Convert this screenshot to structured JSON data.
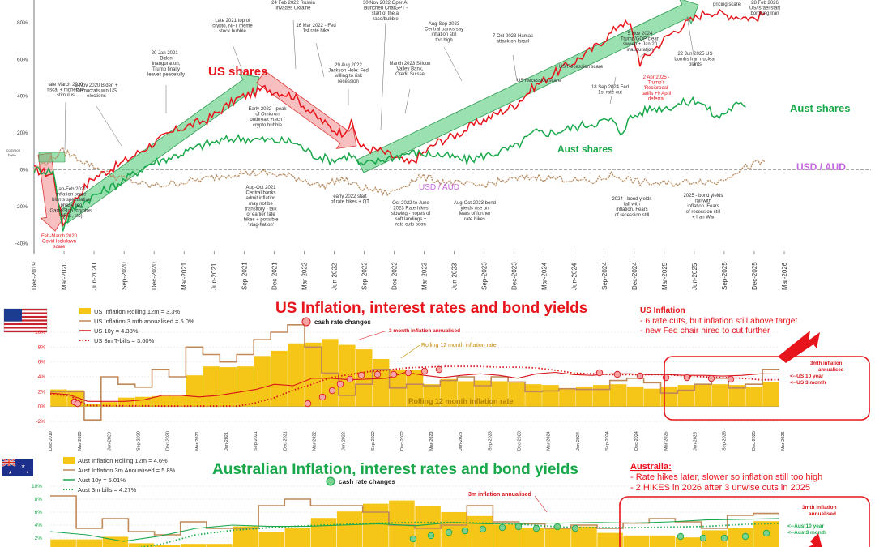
{
  "chart_data": [
    {
      "type": "line",
      "xlabels": [
        "Dec-2019",
        "Mar-2020",
        "Jun-2020",
        "Sep-2020",
        "Dec-2020",
        "Mar-2021",
        "Jun-2021",
        "Sep-2021",
        "Dec-2021",
        "Mar-2022",
        "Jun-2022",
        "Sep-2022",
        "Dec-2022",
        "Mar-2023",
        "Jun-2023",
        "Sep-2023",
        "Dec-2023",
        "Mar-2024",
        "Jun-2024",
        "Sep-2024",
        "Dec-2024",
        "Mar-2025",
        "Jun-2025",
        "Sep-2025",
        "Dec-2025",
        "Mar-2026"
      ],
      "yticks": [
        "80%",
        "60%",
        "40%",
        "20%",
        "0%",
        "-20%",
        "-40%"
      ],
      "ylim": [
        -40,
        85
      ],
      "common_base": "common base",
      "series": [
        {
          "name": "US shares",
          "color": "#e8141b",
          "points": [
            [
              0,
              0
            ],
            [
              2,
              -3
            ],
            [
              3,
              -30
            ],
            [
              4,
              -18
            ],
            [
              6,
              -5
            ],
            [
              9,
              3
            ],
            [
              12,
              13
            ],
            [
              15,
              22
            ],
            [
              18,
              27
            ],
            [
              21,
              38
            ],
            [
              24,
              44
            ],
            [
              27,
              40
            ],
            [
              29,
              30
            ],
            [
              31,
              22
            ],
            [
              32,
              20
            ],
            [
              33,
              25
            ],
            [
              34,
              12
            ],
            [
              36,
              10
            ],
            [
              39,
              3
            ],
            [
              40,
              7
            ],
            [
              42,
              15
            ],
            [
              44,
              19
            ],
            [
              46,
              25
            ],
            [
              48,
              30
            ],
            [
              50,
              35
            ],
            [
              52,
              45
            ],
            [
              54,
              52
            ],
            [
              56,
              58
            ],
            [
              58,
              65
            ],
            [
              60,
              74
            ],
            [
              61,
              80
            ],
            [
              62,
              78
            ],
            [
              63,
              58
            ],
            [
              64,
              63
            ],
            [
              66,
              73
            ],
            [
              68,
              80
            ],
            [
              70,
              86
            ],
            [
              72,
              84
            ],
            [
              75,
              82
            ],
            [
              76,
              85
            ]
          ]
        },
        {
          "name": "Aust shares",
          "color": "#18a84a",
          "points": [
            [
              0,
              0
            ],
            [
              2,
              -1
            ],
            [
              3,
              -32
            ],
            [
              4,
              -22
            ],
            [
              6,
              -15
            ],
            [
              9,
              -7
            ],
            [
              12,
              3
            ],
            [
              15,
              8
            ],
            [
              18,
              14
            ],
            [
              21,
              17
            ],
            [
              24,
              16
            ],
            [
              27,
              15
            ],
            [
              29,
              8
            ],
            [
              31,
              5
            ],
            [
              33,
              8
            ],
            [
              34,
              2
            ],
            [
              36,
              5
            ],
            [
              39,
              9
            ],
            [
              42,
              8
            ],
            [
              45,
              5
            ],
            [
              48,
              9
            ],
            [
              50,
              12
            ],
            [
              52,
              20
            ],
            [
              54,
              20
            ],
            [
              57,
              24
            ],
            [
              60,
              27
            ],
            [
              61,
              20
            ],
            [
              62,
              28
            ],
            [
              64,
              33
            ],
            [
              66,
              34
            ],
            [
              69,
              38
            ],
            [
              71,
              28
            ],
            [
              73,
              35
            ],
            [
              74,
              34
            ]
          ]
        },
        {
          "name": "USD / AUD",
          "color": "#b88f65",
          "points": [
            [
              0,
              0
            ],
            [
              3,
              10
            ],
            [
              5,
              5
            ],
            [
              8,
              -3
            ],
            [
              12,
              -9
            ],
            [
              14,
              -8
            ],
            [
              18,
              -5
            ],
            [
              21,
              -2
            ],
            [
              24,
              -2
            ],
            [
              27,
              -4
            ],
            [
              30,
              -9
            ],
            [
              32,
              -5
            ],
            [
              34,
              -10
            ],
            [
              37,
              -13
            ],
            [
              40,
              -4
            ],
            [
              43,
              -7
            ],
            [
              46,
              -9
            ],
            [
              49,
              -6
            ],
            [
              52,
              -4
            ],
            [
              55,
              -5
            ],
            [
              58,
              -7
            ],
            [
              60,
              -3
            ],
            [
              63,
              -7
            ],
            [
              66,
              -8
            ],
            [
              69,
              -6
            ],
            [
              71,
              -7
            ],
            [
              73,
              -1
            ],
            [
              75,
              3
            ],
            [
              76,
              4
            ]
          ]
        }
      ],
      "labels": {
        "us_shares": "US shares",
        "aust_shares": "Aust shares",
        "usd_aud": "USD / AUD"
      },
      "annotations": [
        "late March 2020 fiscal + monetary stimulus",
        "3 Nov 2020 Biden + Democrats win US elections",
        "20 Jan 2021 - Biden inauguration, Trump finally leaves peacefully",
        "Late 2021 top of crypto, NFT meme stock bubble",
        "24 Feb 2022 Russia invades Ukraine",
        "16 Mar 2022 - Fed 1st rate hike",
        "29 Aug 2022 Jackson Hole: Fed willing to risk recession",
        "30 Nov 2022 OpenAI launched ChatGPT - start of the ai race/bubble",
        "Aug-Sep 2023 Central banks say inflation still too high",
        "March 2023 Silicon Valley Bank, Credit Suisse",
        "7 Oct 2023 Hamas attack on Israel",
        "US Recession scare",
        "US Recession scare",
        "18 Sep 2024 Fed 1st rate cut",
        "5 Nov 2024 Trump/GOP clean sweep + Jan 20 inauguration",
        "2 Apr 2025 - Trump's 'Reciprocal' tariffs +9 April deferral",
        "22 Jun 2025 US bombs Iran nuclear plants",
        "pricing scare",
        "28 Feb 2026 US/Israel start bombing Iran",
        "Early 2022 - peak of Omicron outbreak +tech / crypto bubble",
        "Jan-Feb 2021 inflation scare blunts speculative phase (eg GameStop, cryptos, NFTs, etc)",
        "Aug-Oct 2021 Central banks admit inflation may not be transitory - talk of earlier rate hikes + possible 'stag-flation'",
        "early 2022 start of rate hikes + QT",
        "Oct 2022 to June 2023 Rate hikes slowing - hopes of soft landings + rate cuts soon",
        "Aug-Oct 2023 bond yields rise on fears of further rate hikes",
        "2024 - bond yields fall with inflation. Fears of recession still",
        "2025 - bond yields fall with inflation. Fears of recession still + Iran War",
        "Feb-March 2020 Covid lockdown scare"
      ]
    },
    {
      "type": "bar",
      "title": "US Inflation, interest rates and bond yields",
      "xlabels": [
        "Dec-2019",
        "Mar-2020",
        "Jun-2020",
        "Sep-2020",
        "Dec-2020",
        "Mar-2021",
        "Jun-2021",
        "Sep-2021",
        "Dec-2021",
        "Mar-2022",
        "Jun-2022",
        "Sep-2022",
        "Dec-2022",
        "Mar-2023",
        "Jun-2023",
        "Sep-2023",
        "Dec-2023",
        "Mar-2024",
        "Jun-2024",
        "Sep-2024",
        "Dec-2024",
        "Mar-2025",
        "Jun-2025",
        "Sep-2025",
        "Dec-2025",
        "Mar-2026"
      ],
      "yticks": [
        "10%",
        "8%",
        "6%",
        "4%",
        "2%",
        "0%",
        "-2%"
      ],
      "ylim": [
        -2,
        10
      ],
      "legend": [
        {
          "label": "US Inflation Rolling 12m  =  3.3%",
          "color": "#f5c518",
          "kind": "bar"
        },
        {
          "label": "US Inflation 3 mth annualised  = 5.0%",
          "color": "#c0895a",
          "kind": "line"
        },
        {
          "label": "US 10y  =  4.38%",
          "color": "#d7141a",
          "kind": "line"
        },
        {
          "label": "US 3m T-bills  =  3.60%",
          "color": "#d7141a",
          "kind": "dots"
        }
      ],
      "rolling_12m": [
        2.3,
        2.2,
        0.3,
        0.6,
        1.2,
        1.3,
        1.4,
        1.4,
        4.2,
        5.4,
        5.3,
        5.4,
        6.8,
        7.5,
        8.5,
        8.6,
        9.1,
        8.3,
        7.7,
        6.4,
        5.0,
        4.9,
        3.0,
        3.7,
        3.4,
        3.5,
        3.4,
        3.2,
        3.0,
        2.9,
        2.4,
        2.7,
        2.9,
        3.0,
        2.7,
        2.4,
        2.7,
        2.9,
        3.0,
        3.0,
        2.9,
        2.7,
        3.3
      ],
      "three_month_ann": [
        2.0,
        2.0,
        -1.8,
        4.0,
        3.0,
        2.6,
        5.0,
        4.0,
        8.0,
        7.0,
        6.0,
        7.0,
        9.0,
        10.0,
        11.0,
        8.0,
        4.5,
        1.5,
        3.0,
        5.0,
        2.5,
        3.0,
        2.8,
        3.5,
        4.0,
        2.8,
        4.0,
        3.3,
        2.0,
        2.1,
        2.4,
        2.3,
        2.3,
        3.5,
        3.8,
        3.2,
        1.8,
        2.2,
        3.0,
        3.8,
        2.5,
        3.0,
        5.0
      ],
      "us_10y": [
        1.8,
        1.6,
        0.7,
        0.7,
        0.7,
        0.9,
        1.5,
        1.5,
        1.3,
        1.5,
        1.9,
        2.3,
        3.0,
        2.8,
        3.8,
        3.8,
        3.6,
        3.7,
        3.8,
        4.6,
        4.2,
        3.9,
        4.2,
        4.4,
        4.2,
        3.8,
        4.4,
        4.6,
        4.3,
        4.2,
        4.4,
        4.4,
        4.3,
        4.3,
        4.2,
        4.2,
        4.1,
        4.2,
        4.4,
        4.38
      ],
      "us_3m_tbills": [
        1.6,
        1.5,
        0.15,
        0.12,
        0.1,
        0.1,
        0.05,
        0.05,
        0.05,
        0.05,
        0.05,
        0.5,
        1.2,
        2.2,
        3.0,
        3.9,
        4.3,
        4.7,
        4.9,
        5.2,
        5.3,
        5.4,
        5.4,
        5.4,
        5.3,
        5.3,
        5.2,
        4.9,
        4.5,
        4.4,
        4.3,
        4.3,
        4.3,
        4.3,
        4.1,
        4.0,
        3.9,
        3.8,
        3.6,
        3.6
      ],
      "annotations": {
        "cash_rate_changes": "cash rate changes",
        "three_month_label": "3 month inflation annualised",
        "rolling_label": "Rolling 12 month inflation rate",
        "rolling_label_bottom": "Rolling 12 month inflation rate",
        "right_3m": "3mth inflation annualised",
        "right_10y": "<--US 10 year",
        "right_3month": "<--US 3 month"
      },
      "note_title": "US Inflation",
      "note_lines": [
        "- 6 rate cuts, but inflation still above target",
        "- new Fed chair hired to cut further"
      ]
    },
    {
      "type": "bar",
      "title": "Australian Inflation, interest rates and bond yields",
      "yticks": [
        "10%",
        "8%",
        "6%",
        "4%",
        "2%"
      ],
      "ylim": [
        0,
        10
      ],
      "legend": [
        {
          "label": "Aust Inflation Rolling 12m  =  4.6%",
          "color": "#f5c518",
          "kind": "bar"
        },
        {
          "label": "Aust Inflation 3m Annualised  = 5.8%",
          "color": "#c0895a",
          "kind": "line"
        },
        {
          "label": "Aust 10y  =  5.01%",
          "color": "#18a84a",
          "kind": "line"
        },
        {
          "label": "Aust 3m bills  =  4.27%",
          "color": "#18a84a",
          "kind": "dots"
        }
      ],
      "rolling_12m": [
        1.8,
        1.8,
        2.2,
        1.2,
        0.9,
        1.1,
        1.1,
        3.8,
        3.0,
        3.5,
        5.1,
        6.1,
        7.3,
        7.8,
        7.0,
        6.0,
        5.4,
        4.1,
        3.6,
        3.5,
        3.8,
        2.8,
        2.4,
        2.4,
        2.1,
        3.2,
        3.5,
        4.6
      ],
      "three_month_ann": [
        8.5,
        3.5,
        5.0,
        3.0,
        2.5,
        4.5,
        3.5,
        3.5,
        7.0,
        8.0,
        7.0,
        7.0,
        6.0,
        4.0,
        3.5,
        4.0,
        7.0,
        4.5,
        4.2,
        3.5,
        4.0,
        3.5,
        4.3,
        5.0,
        4.5,
        3.5,
        5.5,
        5.8
      ],
      "aust_10y": [
        3.0,
        2.5,
        1.5,
        2.3,
        3.5,
        4.0,
        3.8,
        3.8,
        4.0,
        4.2,
        3.9,
        4.4,
        4.2,
        4.3,
        4.3,
        4.4,
        4.3,
        4.5,
        4.8,
        4.9,
        5.01
      ],
      "aust_3m": [
        0.2,
        0.1,
        0.2,
        1.0,
        2.5,
        3.2,
        3.6,
        3.9,
        4.1,
        4.3,
        4.4,
        4.4,
        4.3,
        4.1,
        3.7,
        3.6,
        3.6,
        3.7,
        3.8,
        4.1,
        4.27
      ],
      "annotations": {
        "cash_rate_changes": "cash rate changes",
        "three_month_label": "3m  inflation annualised",
        "right_3m": "3mth inflation annualised",
        "right_10y": "<--Aust10 year",
        "right_3month": "<--Aust3 month"
      },
      "note_title": "Australia:",
      "note_lines": [
        "- Rate hikes later, slower so inflation still too high",
        "- 2 HIKES in 2026 after 3 unwise cuts in 2025"
      ]
    }
  ]
}
